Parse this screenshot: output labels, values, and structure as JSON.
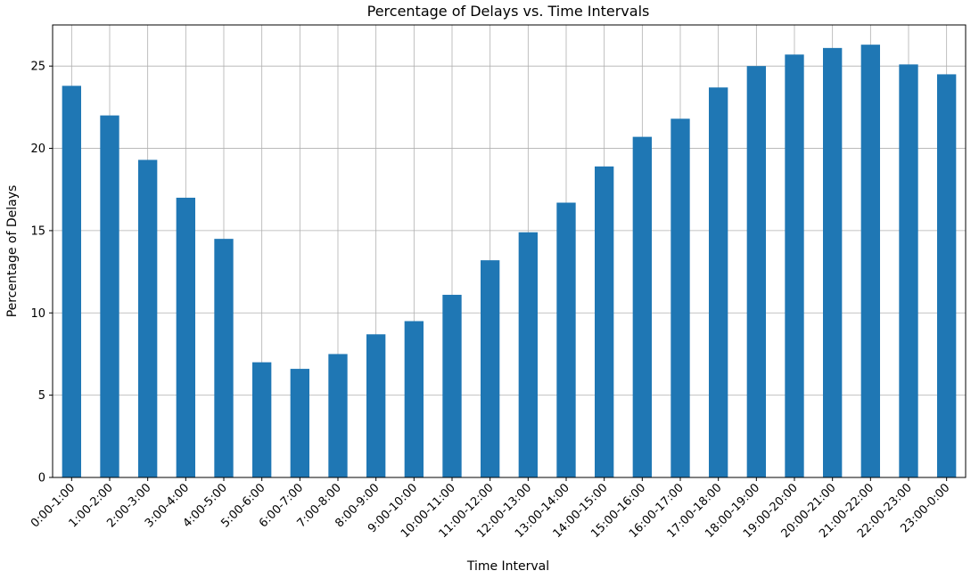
{
  "chart_data": {
    "type": "bar",
    "title": "Percentage of Delays vs. Time Intervals",
    "xlabel": "Time Interval",
    "ylabel": "Percentage of Delays",
    "categories": [
      "0:00-1:00",
      "1:00-2:00",
      "2:00-3:00",
      "3:00-4:00",
      "4:00-5:00",
      "5:00-6:00",
      "6:00-7:00",
      "7:00-8:00",
      "8:00-9:00",
      "9:00-10:00",
      "10:00-11:00",
      "11:00-12:00",
      "12:00-13:00",
      "13:00-14:00",
      "14:00-15:00",
      "15:00-16:00",
      "16:00-17:00",
      "17:00-18:00",
      "18:00-19:00",
      "19:00-20:00",
      "20:00-21:00",
      "21:00-22:00",
      "22:00-23:00",
      "23:00-0:00"
    ],
    "values": [
      23.8,
      22.0,
      19.3,
      17.0,
      14.5,
      7.0,
      6.6,
      7.5,
      8.7,
      9.5,
      11.1,
      13.2,
      14.9,
      16.7,
      18.9,
      20.7,
      21.8,
      23.7,
      25.0,
      25.7,
      26.1,
      26.3,
      25.1,
      24.5
    ],
    "ylim": [
      0,
      27.5
    ],
    "yticks": [
      0,
      5,
      10,
      15,
      20,
      25
    ],
    "grid": true,
    "bar_color": "#1f77b4"
  }
}
